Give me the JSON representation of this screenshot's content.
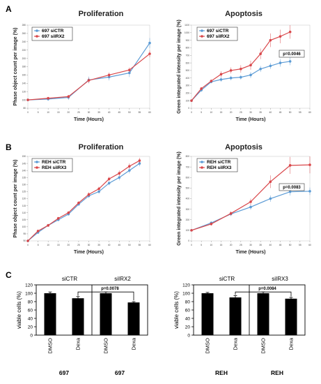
{
  "panels": {
    "A": "A",
    "B": "B",
    "C": "C"
  },
  "colors": {
    "siCTR": "#5b9bd5",
    "siIRX": "#d9474a",
    "bar": "#000000"
  },
  "chart_data": [
    {
      "id": "A-proliferation",
      "type": "line",
      "title": "Proliferation",
      "xlabel": "Time (Hours)",
      "ylabel": "Phase object count per image (%)",
      "legend_position": "top-left",
      "x": [
        0,
        5,
        10,
        15,
        20,
        25,
        30,
        35,
        40,
        45,
        50,
        55,
        60
      ],
      "xlim": [
        0,
        60
      ],
      "ylim": [
        80,
        280
      ],
      "xticks": [
        "0",
        "5",
        "10",
        "15",
        "20",
        "25",
        "30",
        "35",
        "40",
        "45",
        "50",
        "55",
        "60"
      ],
      "yticks": [
        "80",
        "100",
        "120",
        "140",
        "160",
        "180",
        "200",
        "220",
        "240",
        "260",
        "280"
      ],
      "series": [
        {
          "name": "697 siCTR",
          "color": "#5b9bd5",
          "x": [
            0,
            10,
            20,
            30,
            40,
            50,
            60
          ],
          "values": [
            100,
            102,
            106,
            148,
            155,
            165,
            237
          ],
          "errors": [
            2,
            4,
            6,
            8,
            8,
            10,
            12
          ]
        },
        {
          "name": "697 siIRX2",
          "color": "#d9474a",
          "x": [
            0,
            10,
            20,
            30,
            40,
            50,
            60
          ],
          "values": [
            100,
            104,
            108,
            147,
            160,
            172,
            211
          ],
          "errors": [
            2,
            3,
            4,
            6,
            6,
            6,
            8
          ]
        }
      ]
    },
    {
      "id": "A-apoptosis",
      "type": "line",
      "title": "Apoptosis",
      "xlabel": "Time (Hours)",
      "ylabel": "Green integrated intensity per image (%)",
      "legend_position": "top-left",
      "annotation": "p=0.0046",
      "x": [
        0,
        5,
        10,
        15,
        20,
        25,
        30,
        35,
        40,
        45,
        50,
        55,
        60
      ],
      "xlim": [
        0,
        60
      ],
      "ylim": [
        0,
        1100
      ],
      "xticks": [
        "0",
        "5",
        "10",
        "15",
        "20",
        "25",
        "30",
        "35",
        "40",
        "45",
        "50",
        "55",
        "60"
      ],
      "yticks": [
        "0",
        "100",
        "200",
        "300",
        "400",
        "500",
        "600",
        "700",
        "800",
        "900",
        "1000",
        "1100"
      ],
      "series": [
        {
          "name": "697 siCTR",
          "color": "#5b9bd5",
          "x": [
            0,
            5,
            10,
            15,
            20,
            25,
            30,
            35,
            40,
            45,
            50
          ],
          "values": [
            100,
            240,
            350,
            380,
            400,
            410,
            440,
            520,
            560,
            600,
            620
          ],
          "errors": [
            5,
            20,
            20,
            30,
            30,
            30,
            40,
            40,
            40,
            50,
            50
          ]
        },
        {
          "name": "697 siIRX2",
          "color": "#d9474a",
          "x": [
            0,
            5,
            10,
            15,
            20,
            25,
            30,
            35,
            40,
            45,
            50
          ],
          "values": [
            100,
            260,
            360,
            450,
            500,
            520,
            570,
            720,
            900,
            950,
            1010
          ],
          "errors": [
            5,
            20,
            20,
            40,
            40,
            50,
            60,
            70,
            90,
            90,
            90
          ]
        }
      ]
    },
    {
      "id": "B-proliferation",
      "type": "line",
      "title": "Proliferation",
      "xlabel": "Time (Hours)",
      "ylabel": "Phase object count per image (%)",
      "legend_position": "top-left",
      "x": [
        0,
        5,
        10,
        15,
        20,
        25,
        30,
        35,
        40,
        45,
        50,
        55,
        60
      ],
      "xlim": [
        0,
        60
      ],
      "ylim": [
        90,
        150
      ],
      "xticks": [
        "0",
        "5",
        "10",
        "15",
        "20",
        "25",
        "30",
        "35",
        "40",
        "45",
        "50",
        "55",
        "60"
      ],
      "yticks": [
        "90",
        "95",
        "100",
        "105",
        "110",
        "115",
        "120",
        "125",
        "130",
        "135",
        "140",
        "145",
        "150"
      ],
      "series": [
        {
          "name": "REH siCTR",
          "color": "#5b9bd5",
          "x": [
            0,
            5,
            10,
            15,
            20,
            25,
            30,
            35,
            40,
            45,
            50,
            55
          ],
          "values": [
            90,
            96,
            101,
            105,
            109,
            116,
            122,
            125,
            131,
            135,
            140,
            145
          ],
          "errors": [
            0.5,
            1,
            1,
            1,
            1,
            1,
            1.5,
            1.5,
            1.5,
            2,
            2,
            2
          ]
        },
        {
          "name": "REH siIRX3",
          "color": "#d9474a",
          "x": [
            0,
            5,
            10,
            15,
            20,
            25,
            30,
            35,
            40,
            45,
            50,
            55
          ],
          "values": [
            90,
            97,
            101,
            106,
            110,
            117,
            123,
            127,
            134,
            138,
            143,
            147
          ],
          "errors": [
            0.5,
            1,
            1,
            1,
            1,
            1,
            1.5,
            1.5,
            1.5,
            2,
            2,
            2
          ]
        }
      ]
    },
    {
      "id": "B-apoptosis",
      "type": "line",
      "title": "Apoptosis",
      "xlabel": "Time (Hours)",
      "ylabel": "Green integrated intensity per image (%)",
      "legend_position": "top-left",
      "annotation": "p=0.0083",
      "x": [
        0,
        5,
        10,
        15,
        20,
        25,
        30,
        35,
        40,
        45,
        50,
        55,
        60
      ],
      "xlim": [
        0,
        60
      ],
      "ylim": [
        0,
        800
      ],
      "xticks": [
        "0",
        "5",
        "10",
        "15",
        "20",
        "25",
        "30",
        "35",
        "40",
        "45",
        "50",
        "55",
        "60"
      ],
      "yticks": [
        "0",
        "100",
        "200",
        "300",
        "400",
        "500",
        "600",
        "700",
        "800"
      ],
      "series": [
        {
          "name": "REH siCTR",
          "color": "#5b9bd5",
          "x": [
            0,
            10,
            20,
            30,
            40,
            50,
            60
          ],
          "values": [
            100,
            170,
            255,
            320,
            400,
            465,
            470
          ],
          "errors": [
            5,
            15,
            20,
            25,
            30,
            35,
            35
          ]
        },
        {
          "name": "REH siIRX3",
          "color": "#d9474a",
          "x": [
            0,
            10,
            20,
            30,
            40,
            50,
            60
          ],
          "values": [
            100,
            160,
            260,
            370,
            560,
            715,
            720
          ],
          "errors": [
            5,
            15,
            20,
            30,
            60,
            80,
            80
          ]
        }
      ]
    },
    {
      "id": "C-697",
      "type": "bar",
      "ylabel": "viable cells (%)",
      "ylim": [
        0,
        120
      ],
      "yticks": [
        "0",
        "20",
        "40",
        "60",
        "80",
        "100",
        "120"
      ],
      "groups": [
        "siCTR",
        "siIRX2"
      ],
      "categories": [
        "DMSO",
        "Dexa",
        "DMSO",
        "Dexa"
      ],
      "values": [
        100,
        88,
        100,
        78
      ],
      "errors": [
        3,
        4,
        3,
        2
      ],
      "cell_labels": [
        "697",
        "697"
      ],
      "annotation": "p=0.0078"
    },
    {
      "id": "C-REH",
      "type": "bar",
      "ylabel": "viable cells (%)",
      "ylim": [
        0,
        120
      ],
      "yticks": [
        "0",
        "20",
        "40",
        "60",
        "80",
        "100",
        "120"
      ],
      "groups": [
        "siCTR",
        "siIRX3"
      ],
      "categories": [
        "DMSO",
        "Dexa",
        "DMSO",
        "Dexa"
      ],
      "values": [
        100,
        90,
        100,
        87
      ],
      "errors": [
        2,
        4,
        3,
        3
      ],
      "cell_labels": [
        "REH",
        "REH"
      ],
      "annotation": "p=0.0084"
    }
  ]
}
